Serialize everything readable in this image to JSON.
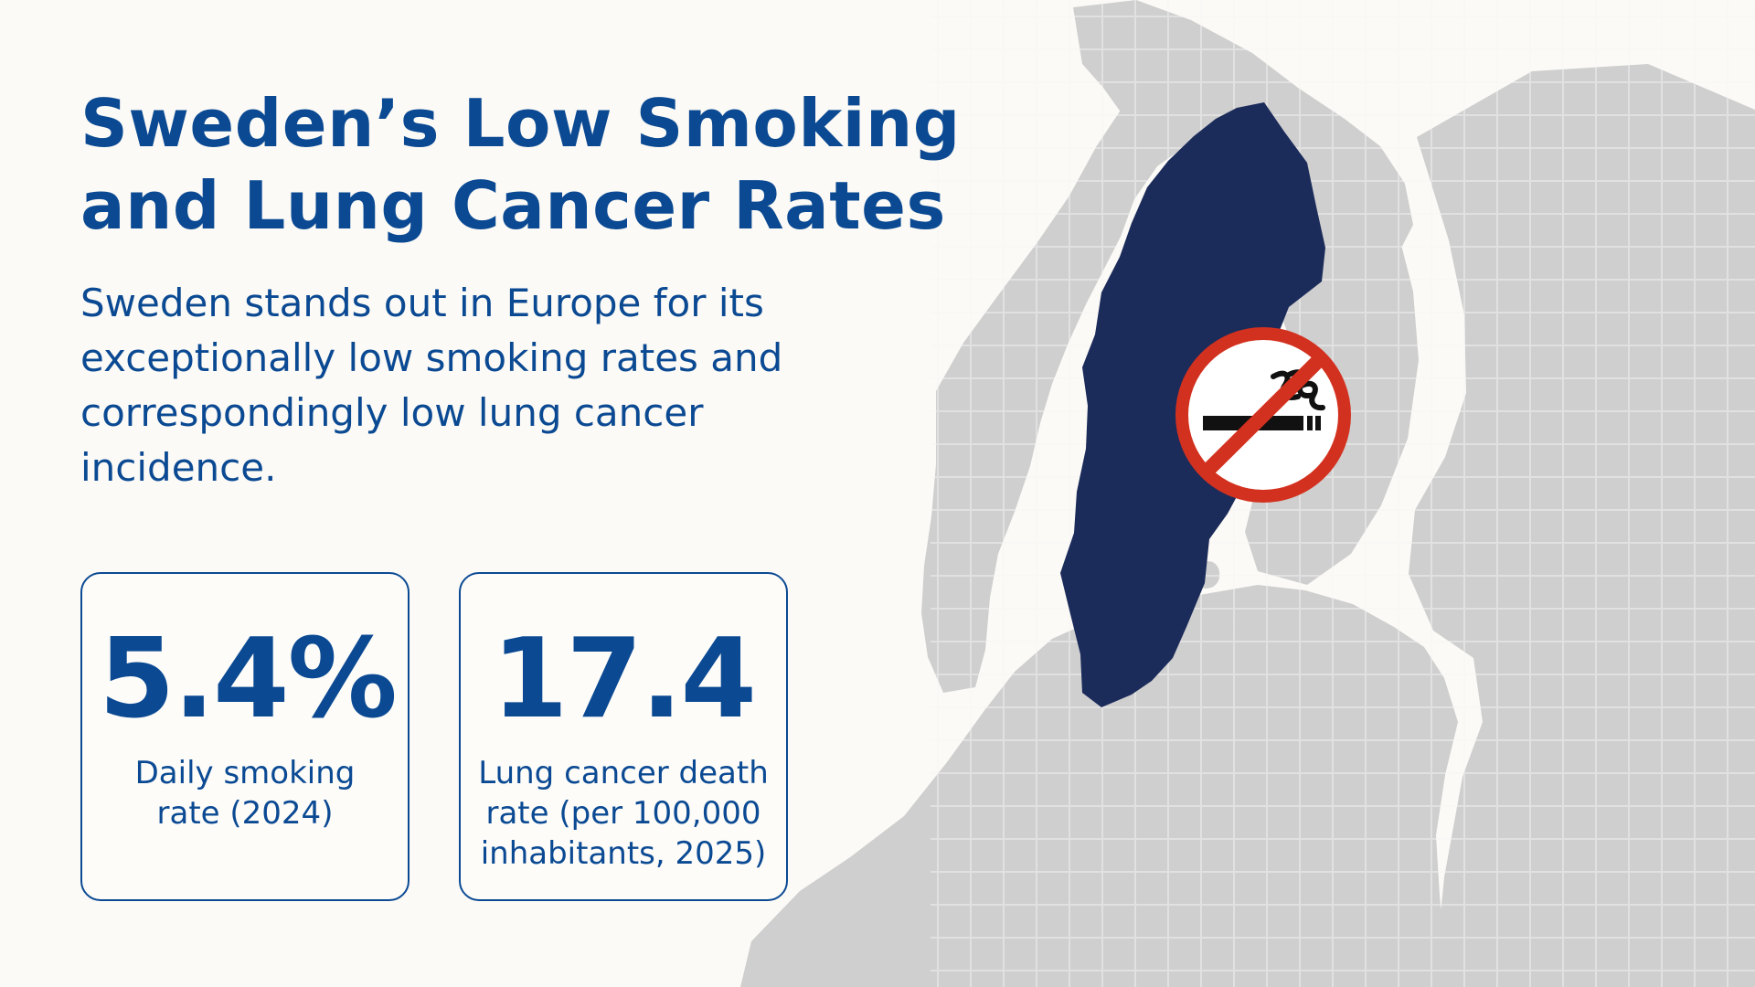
{
  "page": {
    "title": "Sweden’s Low Smoking and Lung Cancer Rates",
    "description": "Sweden stands out in Europe for its exceptionally low smoking rates and correspondingly low lung cancer incidence."
  },
  "stats": [
    {
      "value": "5.4%",
      "label": "Daily smoking rate (2024)"
    },
    {
      "value": "17.4",
      "label": "Lung cancer death rate (per 100,000 inhabitants, 2025)"
    }
  ],
  "colors": {
    "background": "#fcfaf6",
    "text": "#0b4a93",
    "map_land": "#cfcfcf",
    "map_border": "#f6f6f6",
    "highlight": "#1b2b5a",
    "no_smoking_red": "#d3311f"
  },
  "icons": {
    "no_smoking": "no-smoking-icon"
  }
}
